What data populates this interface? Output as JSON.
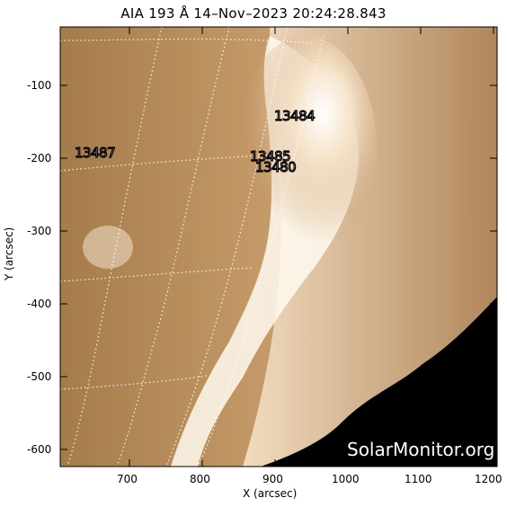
{
  "title": "AIA 193 Å 14–Nov–2023  20:24:28.843",
  "xlabel": "X (arcsec)",
  "ylabel": "Y (arcsec)",
  "x_ticks": [
    "700",
    "800",
    "900",
    "1000",
    "1100",
    "1200"
  ],
  "y_ticks": [
    "-100",
    "-200",
    "-300",
    "-400",
    "-500",
    "-600"
  ],
  "active_regions": [
    "13484",
    "13487",
    "13485",
    "13480"
  ],
  "watermark": "SolarMonitor.org",
  "colors": {
    "limb_bright": "#fffaf0",
    "disk": "#c8a070",
    "space": "#000000",
    "grid": "#ffffff"
  }
}
